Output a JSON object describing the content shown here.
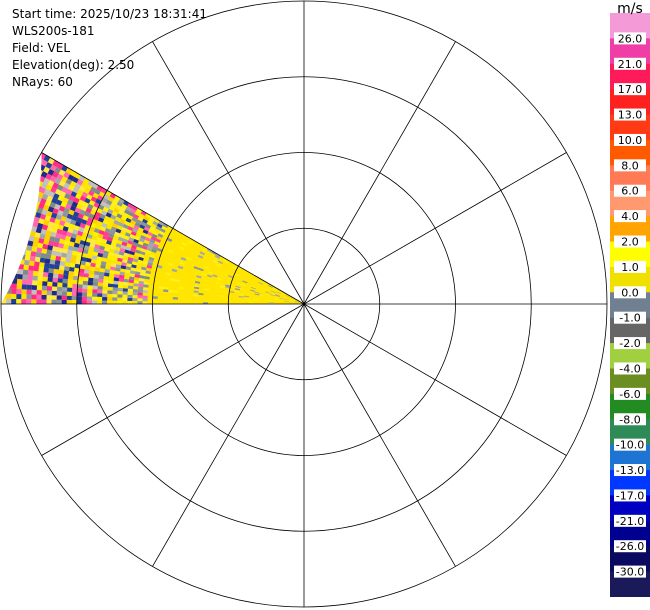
{
  "info": {
    "start_time": "Start time: 2025/10/23 18:31:41",
    "instrument": "WLS200s-181",
    "field": "Field: VEL",
    "elevation": "Elevation(deg): 2.50",
    "nrays": "NRays: 60"
  },
  "colorbar": {
    "unit": "m/s",
    "ticks": [
      "26.0",
      "21.0",
      "17.0",
      "13.0",
      "10.0",
      "8.0",
      "6.0",
      "4.0",
      "2.0",
      "1.0",
      "0.0",
      "-1.0",
      "-2.0",
      "-4.0",
      "-6.0",
      "-8.0",
      "-10.0",
      "-13.0",
      "-17.0",
      "-21.0",
      "-26.0",
      "-30.0"
    ],
    "bands": [
      "#f49ad6",
      "#ef3fa6",
      "#ff1a5a",
      "#ff2020",
      "#ff3a14",
      "#ff5a00",
      "#ff7a55",
      "#ff9a70",
      "#ffa400",
      "#ffff00",
      "#f0e000",
      "#708090",
      "#666666",
      "#a0d040",
      "#6b8e23",
      "#228b22",
      "#2e8b57",
      "#1e74d2",
      "#0038ff",
      "#0000c0",
      "#000090",
      "#0a0a60",
      "#1a1a5a"
    ]
  },
  "plot": {
    "range_rings": 4,
    "spokes": 12,
    "sector_start_deg": 180,
    "sector_end_deg": 210,
    "palette_far": [
      "#ff2a8a",
      "#1f2a90",
      "#ffd000",
      "#c0c0c0",
      "#ff3aa0",
      "#2040a0",
      "#ffe84a",
      "#808890",
      "#ff66b5"
    ],
    "palette_near": [
      "#ffe500",
      "#f6e600",
      "#8a94a0",
      "#ffee20",
      "#a0a6ad",
      "#fff200"
    ]
  }
}
